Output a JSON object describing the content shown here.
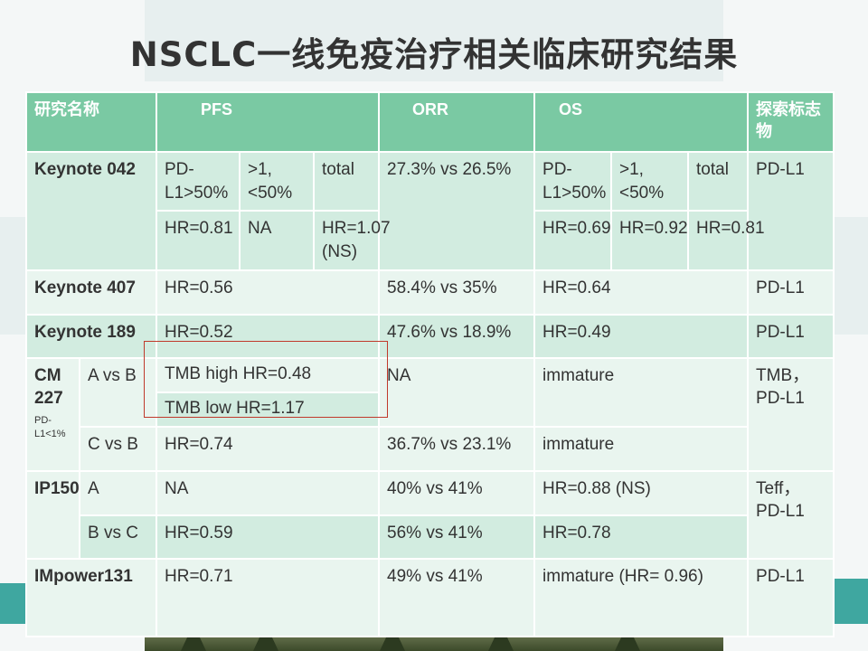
{
  "title": "NSCLC一线免疫治疗相关临床研究结果",
  "headers": {
    "name": "研究名称",
    "pfs": "PFS",
    "orr": "ORR",
    "os": "OS",
    "marker": "探索标志物"
  },
  "kn042": {
    "name": "Keynote 042",
    "pfs_col1": "PD-L1>50%",
    "pfs_col2": ">1,<50%",
    "pfs_col3": "total",
    "pfs_hr1": "HR=0.81",
    "pfs_hr2": "NA",
    "pfs_hr3": "HR=1.07  (NS)",
    "orr": "27.3%   vs 26.5%",
    "os_col1": "PD-L1>50%",
    "os_col2": ">1,<50%",
    "os_col3": "total",
    "os_hr1": "HR=0.69",
    "os_hr2": "HR=0.92",
    "os_hr3": "HR=0.81",
    "marker": "PD-L1"
  },
  "kn407": {
    "name": "Keynote 407",
    "pfs": "HR=0.56",
    "orr": "58.4% vs 35%",
    "os": "HR=0.64",
    "marker": "PD-L1"
  },
  "kn189": {
    "name": "Keynote 189",
    "pfs": "HR=0.52",
    "orr": "47.6% vs 18.9%",
    "os": "HR=0.49",
    "marker": "PD-L1"
  },
  "cm227": {
    "name": "CM 227",
    "note": "PD-L1<1%",
    "arm1": "A vs B",
    "tmb_high": "TMB high  HR=0.48",
    "tmb_low": "TMB low    HR=1.17",
    "orr1": "NA",
    "os1": "immature",
    "arm2": "C vs B",
    "pfs2": "HR=0.74",
    "orr2": "36.7% vs 23.1%",
    "os2": "immature",
    "marker": "TMB，PD-L1"
  },
  "ip150": {
    "name": "IP150",
    "arm1": "A",
    "pfs1": "NA",
    "orr1": "40% vs 41%",
    "os1": "HR=0.88 (NS)",
    "arm2": "B vs C",
    "pfs2": "HR=0.59",
    "orr2": "56% vs 41%",
    "os2": "HR=0.78",
    "marker": "Teff，PD-L1"
  },
  "imp131": {
    "name": "IMpower131",
    "pfs": "HR=0.71",
    "orr": "49% vs 41%",
    "os": "immature (HR= 0.96)",
    "marker": "PD-L1"
  }
}
